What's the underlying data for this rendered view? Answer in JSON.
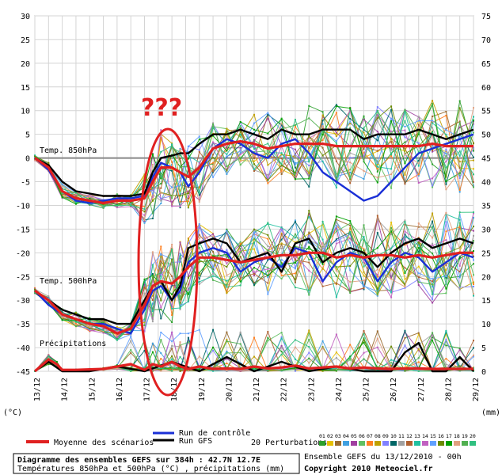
{
  "chart_data": {
    "type": "line",
    "left_axis": {
      "unit": "(°C)",
      "min": -45,
      "max": 30,
      "ticks": [
        30,
        25,
        20,
        15,
        10,
        5,
        0,
        -5,
        -10,
        -15,
        -20,
        -25,
        -30,
        -35,
        -40,
        -45
      ]
    },
    "right_axis": {
      "unit": "(mm)",
      "min": 0,
      "max": 75,
      "ticks": [
        75,
        70,
        65,
        60,
        55,
        50,
        45,
        40,
        35,
        30,
        25,
        20,
        15,
        10,
        5,
        0
      ]
    },
    "x_labels": [
      "13/12",
      "14/12",
      "15/12",
      "16/12",
      "17/12",
      "18/12",
      "19/12",
      "20/12",
      "21/12",
      "22/12",
      "23/12",
      "24/12",
      "25/12",
      "26/12",
      "27/12",
      "28/12",
      "29/12"
    ],
    "panel_labels": {
      "t850": "Temp. 850hPa",
      "t500": "Temp. 500hPa",
      "precip": "Précipitations"
    },
    "annotation": {
      "text": "???",
      "color": "#e02020"
    },
    "series": [
      {
        "name": "Moyenne des scénarios",
        "color": "#e02020",
        "panel": "t850",
        "x": [
          0,
          0.5,
          1,
          1.5,
          2,
          2.5,
          3,
          3.5,
          4,
          4.3,
          4.6,
          5,
          5.3,
          5.6,
          6,
          6.5,
          7,
          7.5,
          8,
          8.5,
          9,
          9.5,
          10,
          10.5,
          11,
          11.5,
          12,
          12.5,
          13,
          13.5,
          14,
          14.5,
          15,
          15.5,
          16
        ],
        "y": [
          0,
          -2,
          -7,
          -8.5,
          -9,
          -9.5,
          -9,
          -9,
          -8.5,
          -5,
          -2,
          -2,
          -3,
          -4,
          -2,
          2,
          3,
          3.5,
          3,
          2,
          2.5,
          3,
          3,
          3,
          2.5,
          2.5,
          2.5,
          2.5,
          2.5,
          2.5,
          2.5,
          3,
          2.5,
          2.5,
          2.5
        ]
      },
      {
        "name": "Run de contrôle",
        "color": "#1a2fd6",
        "panel": "t850",
        "x": [
          0,
          0.5,
          1,
          1.5,
          2,
          2.5,
          3,
          3.5,
          4,
          4.3,
          4.6,
          5,
          5.3,
          5.6,
          6,
          6.5,
          7,
          7.5,
          8,
          8.5,
          9,
          9.5,
          10,
          10.5,
          11,
          11.5,
          12,
          12.5,
          13,
          13.5,
          14,
          14.5,
          15,
          15.5,
          16
        ],
        "y": [
          0,
          -2.5,
          -7,
          -9,
          -9.5,
          -9,
          -8.5,
          -8.5,
          -8,
          -4,
          -1,
          -2,
          -3,
          -6,
          -3,
          2,
          4,
          3,
          1,
          0,
          3,
          4,
          1,
          -3,
          -5,
          -7,
          -9,
          -8,
          -5,
          -2,
          1,
          2,
          3,
          4,
          5
        ]
      },
      {
        "name": "Run GFS",
        "color": "#000000",
        "panel": "t850",
        "x": [
          0,
          0.5,
          1,
          1.5,
          2,
          2.5,
          3,
          3.5,
          4,
          4.3,
          4.6,
          5,
          5.3,
          5.6,
          6,
          6.5,
          7,
          7.5,
          8,
          8.5,
          9,
          9.5,
          10,
          10.5,
          11,
          11.5,
          12,
          12.5,
          13,
          13.5,
          14,
          14.5,
          15,
          15.5,
          16
        ],
        "y": [
          0,
          -1.5,
          -5,
          -7,
          -7.5,
          -8,
          -8,
          -8,
          -7.5,
          -3,
          0,
          0.5,
          1,
          1,
          3,
          5,
          5,
          6,
          5,
          4,
          6,
          5,
          5,
          6,
          6,
          6,
          4,
          5,
          5,
          5,
          6,
          5,
          4,
          5,
          6
        ]
      },
      {
        "name": "Moyenne des scénarios",
        "color": "#e02020",
        "panel": "t500",
        "x": [
          0,
          0.5,
          1,
          1.5,
          2,
          2.5,
          3,
          3.5,
          4,
          4.3,
          4.6,
          5,
          5.3,
          5.6,
          6,
          6.5,
          7,
          7.5,
          8,
          8.5,
          9,
          9.5,
          10,
          10.5,
          11,
          11.5,
          12,
          12.5,
          13,
          13.5,
          14,
          14.5,
          15,
          15.5,
          16
        ],
        "y": [
          -28,
          -30,
          -33,
          -34,
          -35,
          -35.5,
          -37,
          -36,
          -31,
          -27,
          -26,
          -26.5,
          -25,
          -23,
          -21,
          -21,
          -21.5,
          -22,
          -21.5,
          -21,
          -20.5,
          -20.5,
          -20,
          -20,
          -21,
          -20.5,
          -21,
          -20.5,
          -20.5,
          -21,
          -20.5,
          -21,
          -20.5,
          -20,
          -20
        ]
      },
      {
        "name": "Run de contrôle",
        "color": "#1a2fd6",
        "panel": "t500",
        "x": [
          0,
          0.5,
          1,
          1.5,
          2,
          2.5,
          3,
          3.5,
          4,
          4.3,
          4.6,
          5,
          5.3,
          5.6,
          6,
          6.5,
          7,
          7.5,
          8,
          8.5,
          9,
          9.5,
          10,
          10.5,
          11,
          11.5,
          12,
          12.5,
          13,
          13.5,
          14,
          14.5,
          15,
          15.5,
          16
        ],
        "y": [
          -28,
          -31,
          -33,
          -34,
          -35,
          -35,
          -36,
          -37,
          -32,
          -28,
          -27,
          -30,
          -28,
          -22,
          -20,
          -19,
          -20,
          -24,
          -22,
          -21,
          -23,
          -19,
          -20,
          -26,
          -22,
          -20,
          -21,
          -26,
          -22,
          -20,
          -21,
          -24,
          -22,
          -20,
          -21
        ]
      },
      {
        "name": "Run GFS",
        "color": "#000000",
        "panel": "t500",
        "x": [
          0,
          0.5,
          1,
          1.5,
          2,
          2.5,
          3,
          3.5,
          4,
          4.3,
          4.6,
          5,
          5.3,
          5.6,
          6,
          6.5,
          7,
          7.5,
          8,
          8.5,
          9,
          9.5,
          10,
          10.5,
          11,
          11.5,
          12,
          12.5,
          13,
          13.5,
          14,
          14.5,
          15,
          15.5,
          16
        ],
        "y": [
          -28,
          -30,
          -32,
          -33,
          -34,
          -34,
          -35,
          -35,
          -30,
          -27,
          -26,
          -30,
          -27,
          -19,
          -18,
          -17,
          -18,
          -22,
          -21,
          -20,
          -24,
          -18,
          -17,
          -22,
          -20,
          -19,
          -20,
          -23,
          -20,
          -18,
          -17,
          -19,
          -18,
          -17,
          -18
        ]
      },
      {
        "name": "Moyenne des scénarios",
        "color": "#e02020",
        "panel": "precip",
        "x": [
          0,
          0.5,
          0.8,
          1,
          1.5,
          2,
          2.5,
          3,
          3.5,
          4,
          4.3,
          4.6,
          5,
          5.3,
          5.6,
          6,
          6.5,
          7,
          7.5,
          8,
          8.5,
          9,
          9.5,
          10,
          10.5,
          11,
          11.5,
          12,
          12.5,
          13,
          13.5,
          14,
          14.5,
          15,
          15.5,
          16
        ],
        "y": [
          0,
          2.5,
          1.5,
          0.3,
          0.3,
          0.4,
          0.5,
          1,
          1.5,
          0.3,
          1.5,
          1.0,
          2,
          1,
          0.5,
          1,
          0.5,
          0.6,
          0.5,
          1,
          0.6,
          0.8,
          1.2,
          0.6,
          0.8,
          1,
          0.6,
          0.8,
          0.6,
          0.5,
          0.6,
          0.6,
          0.5,
          0.5,
          0.5,
          0.5
        ]
      },
      {
        "name": "Run GFS",
        "color": "#000000",
        "panel": "precip",
        "x": [
          0,
          0.5,
          1,
          2,
          3,
          4,
          4.5,
          5,
          6,
          7,
          8,
          9,
          10,
          11,
          12,
          13,
          13.5,
          14,
          14.5,
          15,
          15.5,
          16
        ],
        "y": [
          0,
          2,
          0,
          0,
          1,
          0,
          1,
          2,
          0,
          3,
          0,
          2,
          0,
          1,
          0,
          0,
          4,
          6,
          0,
          0,
          3,
          0
        ]
      }
    ],
    "perturbation_colors": [
      "#2aa02a",
      "#e6c000",
      "#9a6b30",
      "#40a0e0",
      "#a040a0",
      "#60c060",
      "#ff8020",
      "#c0a000",
      "#8080ff",
      "#006666",
      "#a0a0a0",
      "#b06030",
      "#20c0a0",
      "#c060c0",
      "#60a0ff",
      "#6a8a00",
      "#00a000",
      "#e0a080",
      "#50b050",
      "#30c080"
    ],
    "perturbation_shape": [
      0,
      0.4,
      0.9,
      1.0,
      0.95,
      0.9,
      0.85,
      0.7,
      0.55,
      0.95,
      1.0,
      0.8,
      0.7,
      0.45,
      0.6,
      0.3,
      0.45,
      0.6,
      0.3,
      0.5,
      0.7,
      0.4,
      0.6,
      0.5,
      0.3,
      0.5,
      0.55,
      0.4,
      0.35,
      0.55,
      0.45,
      0.5,
      0.4,
      0.6,
      0.5
    ]
  },
  "legend": {
    "mean_label": "Moyenne des scénarios",
    "control_label": "Run de contrôle",
    "gfs_label": "Run GFS",
    "perturbations_label": "20 Perturbations",
    "perturbation_ids": [
      "01",
      "02",
      "03",
      "04",
      "05",
      "06",
      "07",
      "08",
      "09",
      "10",
      "11",
      "12",
      "13",
      "14",
      "15",
      "16",
      "17",
      "18",
      "19",
      "20"
    ]
  },
  "footer": {
    "title": "Diagramme des ensembles GEFS sur 384h : 42.7N 12.7E",
    "subtitle": "Températures 850hPa et 500hPa (°C) , précipitations (mm)",
    "run_info": "Ensemble GEFS du 13/12/2010 - 00h",
    "copyright": "Copyright 2010 Meteociel.fr"
  }
}
